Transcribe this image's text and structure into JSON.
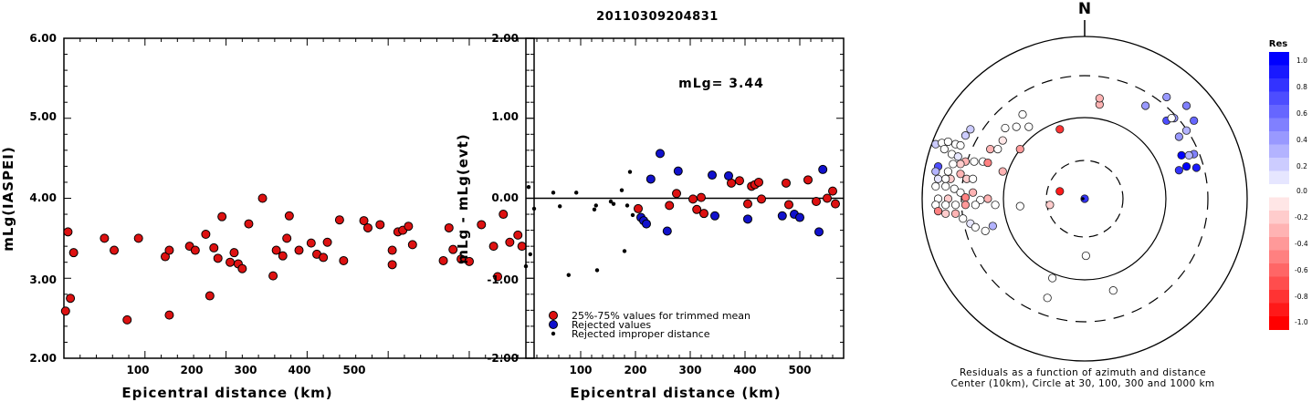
{
  "title": "20110309204831",
  "left_plot": {
    "ylabel": "mLg(IASPEI)",
    "xlabel": "Epicentral distance (km)",
    "yticks": [
      "6.00",
      "5.00",
      "4.00",
      "3.00",
      "2.00"
    ],
    "xticks": [
      "100",
      "200",
      "300",
      "400",
      "500"
    ]
  },
  "mid_plot": {
    "ylabel": "mLg - mLg(evt)",
    "xlabel": "Epicentral distance (km)",
    "yticks": [
      "2.00",
      "1.00",
      "0.00",
      "-1.00",
      "-2.00"
    ],
    "xticks": [
      "100",
      "200",
      "300",
      "400",
      "500"
    ],
    "annotation": "mLg= 3.44",
    "legend": [
      "25%-75% values for trimmed mean",
      "Rejected values",
      "Rejected improper distance"
    ]
  },
  "polar": {
    "north": "N",
    "caption1": "Residuals as a function of azimuth and distance",
    "caption2": "Center (10km), Circle at 30, 100, 300 and 1000 km"
  },
  "colorbar": {
    "title": "Res",
    "labels": [
      "1.0",
      "0.8",
      "0.6",
      "0.4",
      "0.2",
      "0.0",
      "-0.2",
      "-0.4",
      "-0.6",
      "-0.8",
      "-1.0"
    ]
  },
  "colors": {
    "trimmed": "#dd1111",
    "rejected": "#1111cc",
    "improper": "#000000"
  },
  "chart_data": [
    {
      "type": "scatter",
      "name": "mLg(IASPEI) vs distance",
      "xlim": [
        0,
        580
      ],
      "ylim": [
        2,
        6
      ],
      "points": [
        [
          2,
          2.59
        ],
        [
          5,
          3.58
        ],
        [
          8,
          2.75
        ],
        [
          12,
          3.32
        ],
        [
          50,
          3.5
        ],
        [
          62,
          3.35
        ],
        [
          78,
          2.48
        ],
        [
          92,
          3.5
        ],
        [
          125,
          3.27
        ],
        [
          130,
          3.35
        ],
        [
          130,
          2.54
        ],
        [
          155,
          3.4
        ],
        [
          162,
          3.35
        ],
        [
          175,
          3.55
        ],
        [
          180,
          2.78
        ],
        [
          185,
          3.38
        ],
        [
          190,
          3.25
        ],
        [
          195,
          3.77
        ],
        [
          205,
          3.2
        ],
        [
          210,
          3.32
        ],
        [
          215,
          3.18
        ],
        [
          220,
          3.12
        ],
        [
          228,
          3.68
        ],
        [
          245,
          4.0
        ],
        [
          258,
          3.03
        ],
        [
          262,
          3.35
        ],
        [
          270,
          3.28
        ],
        [
          275,
          3.5
        ],
        [
          278,
          3.78
        ],
        [
          290,
          3.35
        ],
        [
          305,
          3.44
        ],
        [
          312,
          3.3
        ],
        [
          320,
          3.26
        ],
        [
          325,
          3.45
        ],
        [
          340,
          3.73
        ],
        [
          345,
          3.22
        ],
        [
          370,
          3.72
        ],
        [
          375,
          3.63
        ],
        [
          390,
          3.67
        ],
        [
          405,
          3.35
        ],
        [
          405,
          3.17
        ],
        [
          412,
          3.58
        ],
        [
          418,
          3.6
        ],
        [
          425,
          3.65
        ],
        [
          430,
          3.42
        ],
        [
          468,
          3.22
        ],
        [
          475,
          3.63
        ],
        [
          480,
          3.36
        ],
        [
          490,
          3.24
        ],
        [
          500,
          3.21
        ],
        [
          515,
          3.67
        ],
        [
          530,
          3.4
        ],
        [
          535,
          3.02
        ],
        [
          542,
          3.8
        ],
        [
          550,
          3.45
        ],
        [
          560,
          3.54
        ],
        [
          565,
          3.4
        ]
      ]
    },
    {
      "type": "scatter",
      "name": "residual vs distance",
      "xlim": [
        0,
        580
      ],
      "ylim": [
        -2,
        2
      ],
      "series": [
        {
          "name": "25%-75% values for trimmed mean",
          "color": "#dd1111",
          "points": [
            [
              205,
              -0.13
            ],
            [
              262,
              -0.09
            ],
            [
              275,
              0.06
            ],
            [
              305,
              -0.01
            ],
            [
              312,
              -0.14
            ],
            [
              320,
              0.01
            ],
            [
              325,
              -0.19
            ],
            [
              375,
              0.19
            ],
            [
              390,
              0.22
            ],
            [
              405,
              -0.07
            ],
            [
              412,
              0.15
            ],
            [
              418,
              0.17
            ],
            [
              425,
              0.2
            ],
            [
              430,
              -0.01
            ],
            [
              475,
              0.19
            ],
            [
              480,
              -0.08
            ],
            [
              515,
              0.23
            ],
            [
              530,
              -0.04
            ],
            [
              550,
              0.0
            ],
            [
              560,
              0.09
            ],
            [
              565,
              -0.07
            ]
          ]
        },
        {
          "name": "Rejected values",
          "color": "#1111cc",
          "points": [
            [
              210,
              -0.24
            ],
            [
              215,
              -0.28
            ],
            [
              220,
              -0.32
            ],
            [
              228,
              0.24
            ],
            [
              245,
              0.56
            ],
            [
              258,
              -0.41
            ],
            [
              278,
              0.34
            ],
            [
              340,
              0.29
            ],
            [
              345,
              -0.22
            ],
            [
              370,
              0.28
            ],
            [
              405,
              -0.26
            ],
            [
              468,
              -0.22
            ],
            [
              490,
              -0.2
            ],
            [
              500,
              -0.24
            ],
            [
              535,
              -0.42
            ],
            [
              542,
              0.36
            ]
          ]
        },
        {
          "name": "Rejected improper distance",
          "color": "#000000",
          "points": [
            [
              0,
              -0.85
            ],
            [
              5,
              0.14
            ],
            [
              8,
              -0.7
            ],
            [
              15,
              -0.13
            ],
            [
              50,
              0.07
            ],
            [
              62,
              -0.1
            ],
            [
              78,
              -0.96
            ],
            [
              92,
              0.07
            ],
            [
              125,
              -0.14
            ],
            [
              128,
              -0.09
            ],
            [
              130,
              -0.9
            ],
            [
              155,
              -0.04
            ],
            [
              160,
              -0.07
            ],
            [
              175,
              0.1
            ],
            [
              180,
              -0.66
            ],
            [
              185,
              -0.09
            ],
            [
              190,
              0.33
            ],
            [
              195,
              -0.21
            ]
          ]
        }
      ]
    },
    {
      "type": "scatter",
      "name": "polar residuals",
      "points": [
        [
          0,
          0,
          0.8
        ],
        [
          10,
          -22,
          -0.2
        ],
        [
          7,
          -120,
          0.0
        ],
        [
          30,
          -140,
          0.6
        ],
        [
          -70,
          -88,
          0.0
        ],
        [
          -11,
          -48,
          0.0
        ],
        [
          25,
          70,
          -0.8
        ],
        [
          -65,
          -28,
          0.0
        ],
        [
          -45,
          -100,
          0.1
        ],
        [
          -36,
          -98,
          -0.3
        ],
        [
          -70,
          -60,
          0.0
        ],
        [
          -12,
          -115,
          -0.3
        ],
        [
          -42,
          -15,
          -0.5
        ],
        [
          -18,
          -130,
          0.9
        ],
        [
          -8,
          -16,
          -0.2
        ],
        [
          -6,
          -30,
          0.0
        ],
        [
          -5,
          -12,
          -0.3
        ],
        [
          -7,
          -8,
          -0.4
        ],
        [
          -9,
          -15,
          -0.1
        ],
        [
          -13,
          -20,
          0.3
        ],
        [
          -18,
          -22,
          0.3
        ],
        [
          -25,
          -16,
          -0.4
        ],
        [
          -35,
          -18,
          0.0
        ],
        [
          -40,
          -42,
          -0.2
        ],
        [
          -30,
          -55,
          0.0
        ],
        [
          -12,
          -90,
          0.5
        ],
        [
          0,
          90,
          0.0
        ],
        [
          -10,
          64,
          0.2
        ],
        [
          -14,
          83,
          0.0
        ],
        [
          -8,
          69,
          0.0
        ],
        [
          -12,
          74,
          0.1
        ],
        [
          -23,
          90,
          0.0
        ],
        [
          -5,
          88,
          -0.3
        ],
        [
          -15,
          65,
          0.7
        ],
        [
          -5,
          75,
          0.2
        ],
        [
          -14,
          35,
          0.0
        ],
        [
          -4,
          80,
          0.0
        ],
        [
          -28,
          20,
          -0.4
        ],
        [
          -22,
          28,
          0.0
        ],
        [
          -20,
          11,
          -0.3
        ],
        [
          -16,
          45,
          0.0
        ],
        [
          -10,
          32,
          -0.5
        ],
        [
          -13,
          42,
          0.0
        ],
        [
          -26,
          42,
          -0.3
        ],
        [
          -8,
          58,
          0.0
        ],
        [
          -3,
          72,
          0.2
        ],
        [
          -1,
          65,
          0.0
        ],
        [
          -3,
          50,
          -0.2
        ],
        [
          -1,
          80,
          0.3
        ],
        [
          -14,
          26,
          0.0
        ],
        [
          -6,
          35,
          0.0
        ],
        [
          -3,
          42,
          0.0
        ],
        [
          -5,
          58,
          0.0
        ],
        [
          -4,
          65,
          0.0
        ],
        [
          -7,
          76,
          0.0
        ],
        [
          -4,
          88,
          0.0
        ],
        [
          -10,
          68,
          0.2
        ],
        [
          -8,
          60,
          -0.2
        ],
        [
          -1,
          62,
          -0.2
        ],
        [
          -18,
          78,
          0.6
        ],
        [
          -14,
          58,
          -0.3
        ],
        [
          -3,
          23,
          0.0
        ],
        [
          -7,
          16,
          -0.1
        ],
        [
          -11,
          15,
          0.0
        ],
        [
          -14,
          8,
          0.0
        ],
        [
          -3,
          16,
          0.0
        ],
        [
          -9,
          28,
          -0.2
        ],
        [
          -1,
          10,
          0.0
        ],
        [
          -12,
          25,
          0.0
        ],
        [
          -6,
          4,
          -0.3
        ],
        [
          -16,
          5,
          -0.4
        ],
        [
          -4,
          2,
          0.0
        ],
        [
          -11,
          6,
          -0.2
        ],
        [
          -2,
          30,
          0.0
        ],
        [
          -5,
          16,
          0.0
        ],
        [
          -8,
          48,
          -0.2
        ],
        [
          -6,
          86,
          0.0
        ],
        [
          -15,
          54,
          0.4
        ],
        [
          -21,
          47,
          0.0
        ],
        [
          -14,
          94,
          0.0
        ],
        [
          -20,
          72,
          0.3
        ],
        [
          -16,
          -78,
          0.0
        ],
        [
          -25,
          -60,
          0.0
        ],
        [
          -12,
          -58,
          0.0
        ],
        [
          -9,
          -68,
          0.0
        ],
        [
          -7,
          -86,
          0.0
        ],
        [
          -18,
          -74,
          0.0
        ],
        [
          -13,
          -70,
          0.0
        ],
        [
          -15,
          -88,
          0.0
        ],
        [
          -19,
          -106,
          0.0
        ],
        [
          -10,
          -100,
          0.0
        ],
        [
          -21,
          -120,
          0.0
        ],
        [
          -28,
          -126,
          0.0
        ],
        [
          -24,
          -136,
          0.0
        ],
        [
          -16,
          -115,
          0.0
        ],
        [
          -10,
          -122,
          0.0
        ],
        [
          -5,
          -110,
          0.0
        ],
        [
          -14,
          -140,
          0.0
        ],
        [
          -20,
          -148,
          0.0
        ],
        [
          -12,
          -150,
          0.0
        ],
        [
          -15,
          -104,
          0.0
        ],
        [
          -8,
          -98,
          0.0
        ]
      ]
    }
  ]
}
